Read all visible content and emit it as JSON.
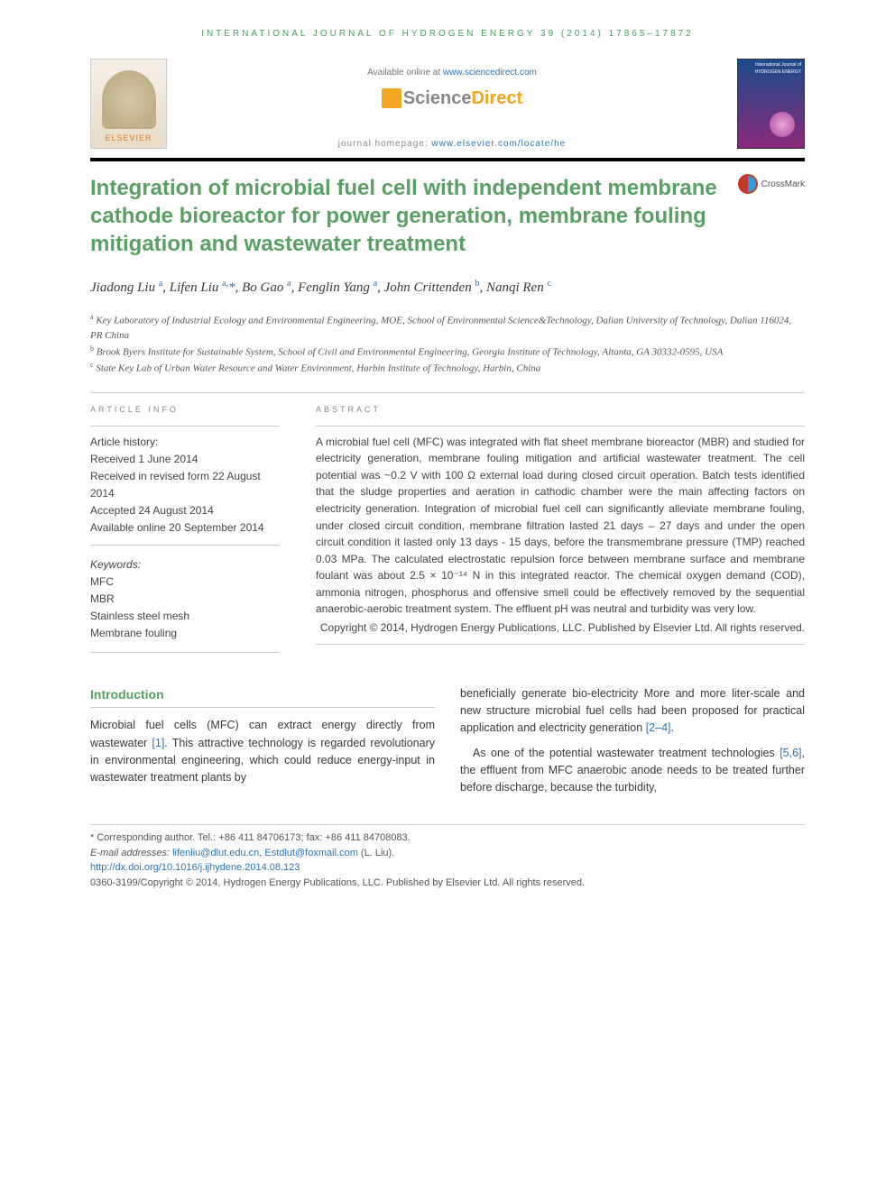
{
  "running_header": "INTERNATIONAL JOURNAL OF HYDROGEN ENERGY 39 (2014) 17865–17872",
  "masthead": {
    "elsevier_label": "ELSEVIER",
    "available_prefix": "Available online at ",
    "available_link": "www.sciencedirect.com",
    "sd_science": "Science",
    "sd_direct": "Direct",
    "journal_prefix": "journal homepage: ",
    "journal_link": "www.elsevier.com/locate/he",
    "cover_title": "International Journal of HYDROGEN ENERGY"
  },
  "crossmark_label": "CrossMark",
  "article_title": "Integration of microbial fuel cell with independent membrane cathode bioreactor for power generation, membrane fouling mitigation and wastewater treatment",
  "authors_html": "Jiadong Liu <sup>a</sup>, Lifen Liu <sup>a,</sup><span class=\"star\">*</span>, Bo Gao <sup>a</sup>, Fenglin Yang <sup>a</sup>, John Crittenden <sup>b</sup>, Nanqi Ren <sup>c</sup>",
  "affiliations": {
    "a": "Key Laboratory of Industrial Ecology and Environmental Engineering, MOE, School of Environmental Science&Technology, Dalian University of Technology, Dalian 116024, PR China",
    "b": "Brook Byers Institute for Sustainable System, School of Civil and Environmental Engineering, Georgia Institute of Technology, Altanta, GA 30332-0595, USA",
    "c": "State Key Lab of Urban Water Resource and Water Environment, Harbin Institute of Technology, Harbin, China"
  },
  "info_labels": {
    "article_info": "ARTICLE INFO",
    "abstract": "ABSTRACT"
  },
  "history": {
    "title": "Article history:",
    "received": "Received 1 June 2014",
    "revised": "Received in revised form 22 August 2014",
    "accepted": "Accepted 24 August 2014",
    "online": "Available online 20 September 2014"
  },
  "keywords": {
    "title": "Keywords:",
    "items": [
      "MFC",
      "MBR",
      "Stainless steel mesh",
      "Membrane fouling"
    ]
  },
  "abstract": "A microbial fuel cell (MFC) was integrated with flat sheet membrane bioreactor (MBR) and studied for electricity generation, membrane fouling mitigation and artificial wastewater treatment. The cell potential was ~0.2 V with 100 Ω external load during closed circuit operation. Batch tests identified that the sludge properties and aeration in cathodic chamber were the main affecting factors on electricity generation. Integration of microbial fuel cell can significantly alleviate membrane fouling, under closed circuit condition, membrane filtration lasted 21 days – 27 days and under the open circuit condition it lasted only 13 days - 15 days, before the transmembrane pressure (TMP) reached 0.03 MPa. The calculated electrostatic repulsion force between membrane surface and membrane foulant was about 2.5 × 10⁻¹⁴ N in this integrated reactor. The chemical oxygen demand (COD), ammonia nitrogen, phosphorus and offensive smell could be effectively removed by the sequential anaerobic-aerobic treatment system. The effluent pH was neutral and turbidity was very low.",
  "copyright_abs": "Copyright © 2014, Hydrogen Energy Publications, LLC. Published by Elsevier Ltd. All rights reserved.",
  "intro_heading": "Introduction",
  "intro_p1_a": "Microbial fuel cells (MFC) can extract energy directly from wastewater ",
  "intro_p1_ref1": "[1]",
  "intro_p1_b": ". This attractive technology is regarded revolutionary in environmental engineering, which could reduce energy-input in wastewater treatment plants by",
  "intro_p2_a": "beneficially generate bio-electricity More and more liter-scale and new structure microbial fuel cells had been proposed for practical application and electricity generation ",
  "intro_p2_ref": "[2–4]",
  "intro_p2_b": ".",
  "intro_p3_a": "As one of the potential wastewater treatment technologies ",
  "intro_p3_ref": "[5,6]",
  "intro_p3_b": ", the effluent from MFC anaerobic anode needs to be treated further before discharge, because the turbidity,",
  "footer": {
    "corr": "* Corresponding author. Tel.: +86 411 84706173; fax: +86 411 84708083.",
    "email_label": "E-mail addresses: ",
    "email1": "lifenliu@dlut.edu.cn",
    "email_sep": ", ",
    "email2": "Estdlut@foxmail.com",
    "email_suffix": " (L. Liu).",
    "doi": "http://dx.doi.org/10.1016/j.ijhydene.2014.08.123",
    "issn": "0360-3199/Copyright © 2014, Hydrogen Energy Publications, LLC. Published by Elsevier Ltd. All rights reserved."
  },
  "colors": {
    "green": "#5aa065",
    "link": "#2a74b8",
    "orange": "#e87b1e"
  }
}
